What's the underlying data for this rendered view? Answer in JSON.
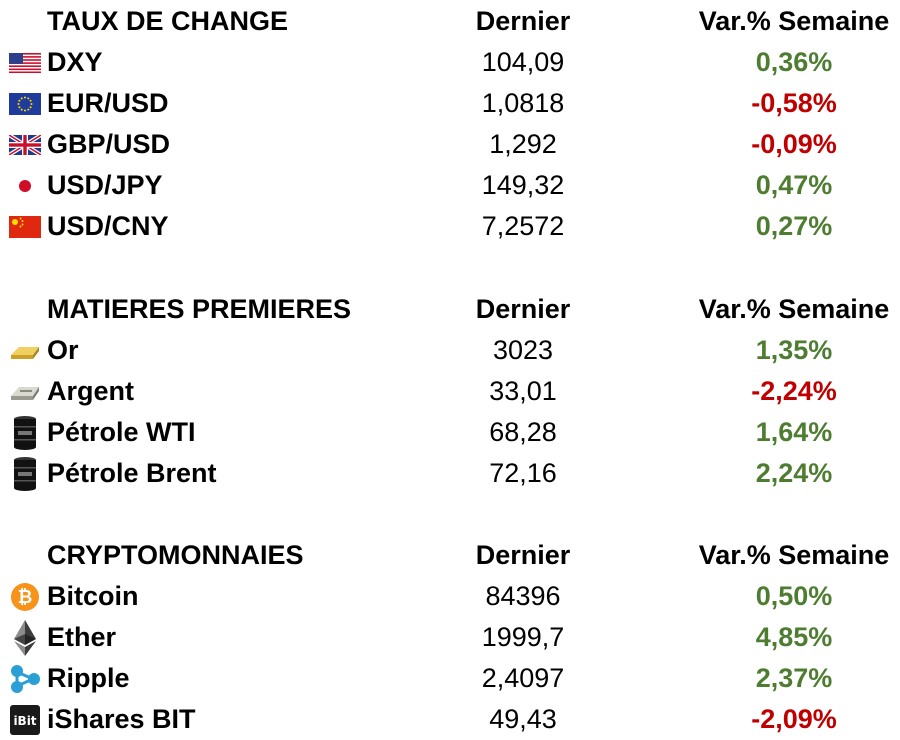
{
  "colors": {
    "positive": "#4e7d32",
    "negative": "#c00000"
  },
  "sections": [
    {
      "title": "TAUX DE CHANGE",
      "col_last": "Dernier",
      "col_var": "Var.% Semaine",
      "rows": [
        {
          "icon": "us-flag-icon",
          "name": "DXY",
          "last": "104,09",
          "var": "0,36%",
          "trend": "pos"
        },
        {
          "icon": "eu-flag-icon",
          "name": "EUR/USD",
          "last": "1,0818",
          "var": "-0,58%",
          "trend": "neg"
        },
        {
          "icon": "uk-flag-icon",
          "name": "GBP/USD",
          "last": "1,292",
          "var": "-0,09%",
          "trend": "neg"
        },
        {
          "icon": "japan-flag-icon",
          "name": "USD/JPY",
          "last": "149,32",
          "var": "0,47%",
          "trend": "pos"
        },
        {
          "icon": "china-flag-icon",
          "name": "USD/CNY",
          "last": "7,2572",
          "var": "0,27%",
          "trend": "pos"
        }
      ]
    },
    {
      "title": "MATIERES PREMIERES",
      "col_last": "Dernier",
      "col_var": "Var.% Semaine",
      "rows": [
        {
          "icon": "gold-bar-icon",
          "name": "Or",
          "last": "3023",
          "var": "1,35%",
          "trend": "pos"
        },
        {
          "icon": "silver-bar-icon",
          "name": "Argent",
          "last": "33,01",
          "var": "-2,24%",
          "trend": "neg"
        },
        {
          "icon": "oil-barrel-icon",
          "name": "Pétrole WTI",
          "last": "68,28",
          "var": "1,64%",
          "trend": "pos"
        },
        {
          "icon": "oil-barrel-icon",
          "name": "Pétrole Brent",
          "last": "72,16",
          "var": "2,24%",
          "trend": "pos"
        }
      ]
    },
    {
      "title": "CRYPTOMONNAIES",
      "col_last": "Dernier",
      "col_var": "Var.% Semaine",
      "rows": [
        {
          "icon": "bitcoin-icon",
          "name": "Bitcoin",
          "last": "84396",
          "var": "0,50%",
          "trend": "pos"
        },
        {
          "icon": "ethereum-icon",
          "name": "Ether",
          "last": "1999,7",
          "var": "4,85%",
          "trend": "pos"
        },
        {
          "icon": "ripple-icon",
          "name": "Ripple",
          "last": "2,4097",
          "var": "2,37%",
          "trend": "pos"
        },
        {
          "icon": "ishares-bit-icon",
          "name": "iShares BIT",
          "last": "49,43",
          "var": "-2,09%",
          "trend": "neg"
        }
      ]
    }
  ]
}
